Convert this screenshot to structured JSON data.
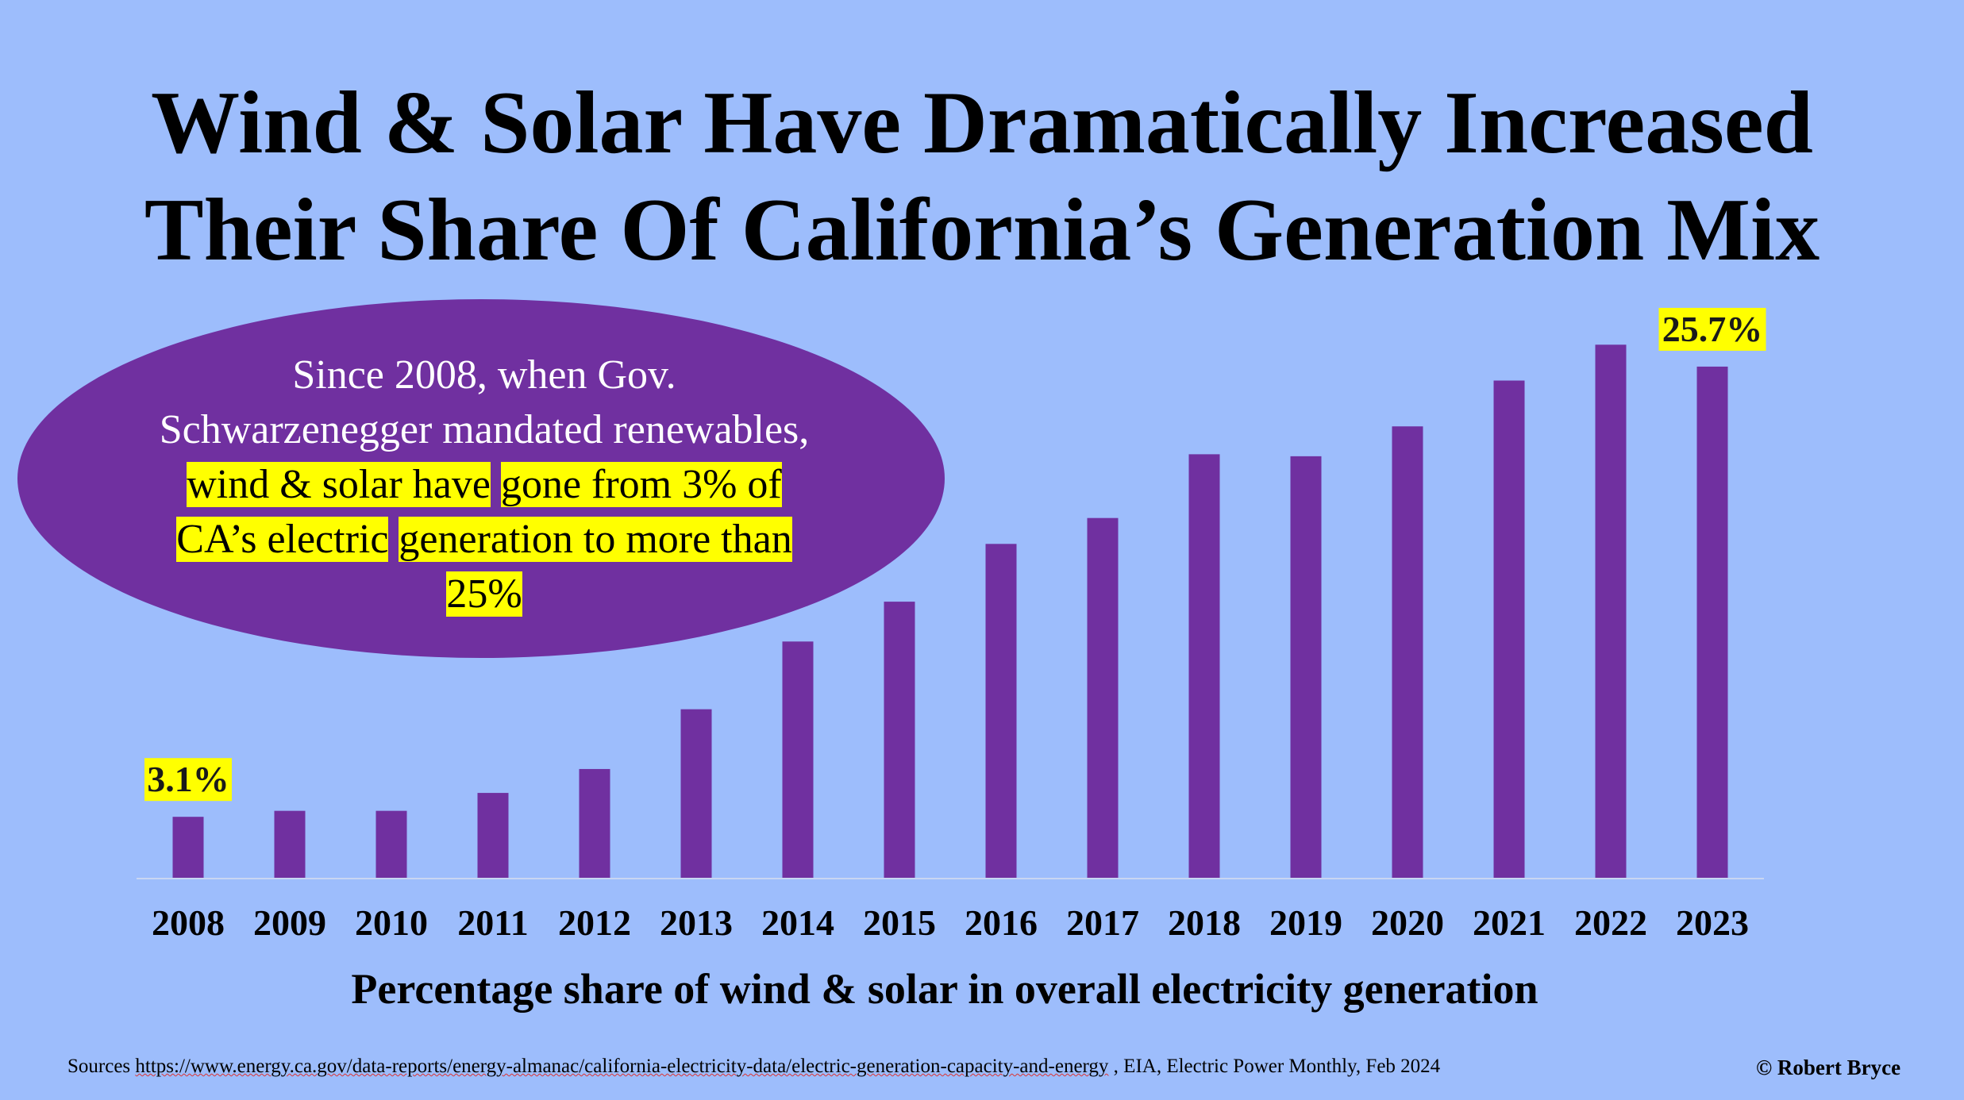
{
  "title": {
    "line1": "Wind & Solar Have Dramatically Increased",
    "line2": "Their Share Of California’s Generation Mix"
  },
  "callout": {
    "plain": "Since 2008, when Gov. Schwarzenegger mandated renewables, ",
    "highlight_1": "wind & solar have",
    "highlight_2": "gone from 3% of CA’s electric",
    "highlight_3": "generation to more than 25%"
  },
  "chart_data": {
    "type": "bar",
    "categories": [
      "2008",
      "2009",
      "2010",
      "2011",
      "2012",
      "2013",
      "2014",
      "2015",
      "2016",
      "2017",
      "2018",
      "2019",
      "2020",
      "2021",
      "2022",
      "2023"
    ],
    "values": [
      3.1,
      3.4,
      3.4,
      4.3,
      5.5,
      8.5,
      11.9,
      13.9,
      16.8,
      18.1,
      21.3,
      21.2,
      22.7,
      25.0,
      26.8,
      25.7
    ],
    "data_labels": [
      {
        "category": "2008",
        "text": "3.1%"
      },
      {
        "category": "2023",
        "text": "25.7%"
      }
    ],
    "xlabel": "Percentage share of wind & solar in overall electricity generation",
    "ylabel": "",
    "ylim": [
      0,
      28
    ],
    "grid": false,
    "bar_color": "#7030a0",
    "label_highlight": "#ffff00"
  },
  "footer": {
    "sources_label": "Sources",
    "sources_url": "https://www.energy.ca.gov/data-reports/energy-almanac/california-electricity-data/electric-generation-capacity-and-energy",
    "sources_rest": " , EIA, Electric Power Monthly, Feb 2024",
    "copyright": "© Robert Bryce"
  },
  "colors": {
    "background": "#9dbdfc",
    "callout_ellipse": "#7030a0",
    "highlight": "#ffff00"
  }
}
